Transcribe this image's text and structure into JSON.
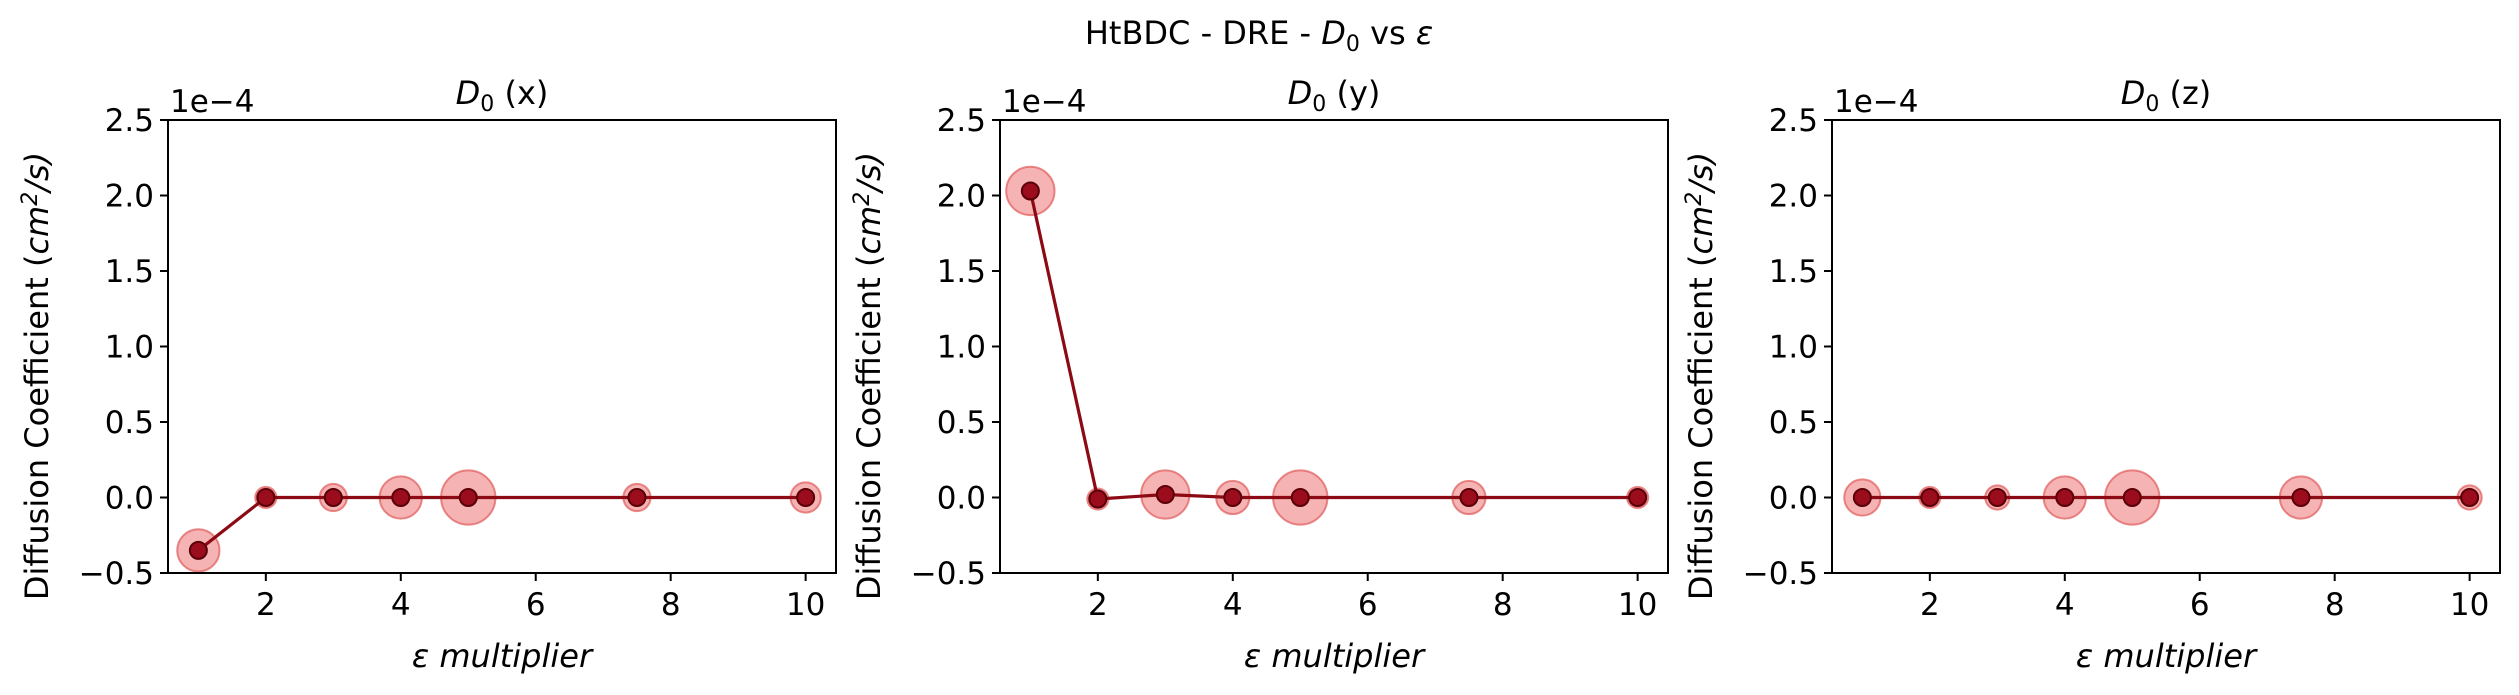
{
  "figure": {
    "title_parts": [
      "HtBDC - DRE - ",
      "D",
      "0",
      " vs ",
      "ε"
    ]
  },
  "chart_data": [
    {
      "type": "scatter",
      "title_parts": [
        "D",
        "0",
        " (x)"
      ],
      "xlabel": "ε multiplier",
      "ylabel_parts": [
        "Diffusion Coefficient (",
        "cm",
        "2",
        "/s)"
      ],
      "y_offset_label": "1e−4",
      "y_scale": 0.0001,
      "xlim": [
        0.55,
        10.45
      ],
      "ylim": [
        -0.5,
        2.5
      ],
      "xticks": [
        2,
        4,
        6,
        8,
        10
      ],
      "yticks": [
        -0.5,
        0.0,
        0.5,
        1.0,
        1.5,
        2.0,
        2.5
      ],
      "ytick_labels": [
        "−0.5",
        "0.0",
        "0.5",
        "1.0",
        "1.5",
        "2.0",
        "2.5"
      ],
      "grid": false,
      "legend": "none",
      "series": [
        {
          "x": [
            1,
            2,
            3,
            4,
            5,
            7.5,
            10
          ],
          "y": [
            -0.35,
            0.0,
            0.0,
            0.0,
            0.0,
            0.0,
            0.0
          ],
          "err": [
            0.14,
            0.07,
            0.09,
            0.14,
            0.18,
            0.09,
            0.1
          ]
        }
      ]
    },
    {
      "type": "scatter",
      "title_parts": [
        "D",
        "0",
        " (y)"
      ],
      "xlabel": "ε multiplier",
      "ylabel_parts": [
        "Diffusion Coefficient (",
        "cm",
        "2",
        "/s)"
      ],
      "y_offset_label": "1e−4",
      "y_scale": 0.0001,
      "xlim": [
        0.55,
        10.45
      ],
      "ylim": [
        -0.5,
        2.5
      ],
      "xticks": [
        2,
        4,
        6,
        8,
        10
      ],
      "yticks": [
        -0.5,
        0.0,
        0.5,
        1.0,
        1.5,
        2.0,
        2.5
      ],
      "ytick_labels": [
        "−0.5",
        "0.0",
        "0.5",
        "1.0",
        "1.5",
        "2.0",
        "2.5"
      ],
      "grid": false,
      "legend": "none",
      "series": [
        {
          "x": [
            1,
            2,
            3,
            4,
            5,
            7.5,
            10
          ],
          "y": [
            2.03,
            -0.01,
            0.02,
            0.0,
            0.0,
            0.0,
            0.0
          ],
          "err": [
            0.16,
            0.07,
            0.16,
            0.11,
            0.18,
            0.11,
            0.07
          ]
        }
      ]
    },
    {
      "type": "scatter",
      "title_parts": [
        "D",
        "0",
        " (z)"
      ],
      "xlabel": "ε multiplier",
      "ylabel_parts": [
        "Diffusion Coefficient (",
        "cm",
        "2",
        "/s)"
      ],
      "y_offset_label": "1e−4",
      "y_scale": 0.0001,
      "xlim": [
        0.55,
        10.45
      ],
      "ylim": [
        -0.5,
        2.5
      ],
      "xticks": [
        2,
        4,
        6,
        8,
        10
      ],
      "yticks": [
        -0.5,
        0.0,
        0.5,
        1.0,
        1.5,
        2.0,
        2.5
      ],
      "ytick_labels": [
        "−0.5",
        "0.0",
        "0.5",
        "1.0",
        "1.5",
        "2.0",
        "2.5"
      ],
      "grid": false,
      "legend": "none",
      "series": [
        {
          "x": [
            1,
            2,
            3,
            4,
            5,
            7.5,
            10
          ],
          "y": [
            0.0,
            0.0,
            0.0,
            0.0,
            0.0,
            0.0,
            0.0
          ],
          "err": [
            0.12,
            0.07,
            0.08,
            0.14,
            0.18,
            0.14,
            0.08
          ]
        }
      ]
    }
  ],
  "colors": {
    "line": "#8b0a14",
    "point": "#9b0c1c",
    "error_fill": "#f08080"
  }
}
